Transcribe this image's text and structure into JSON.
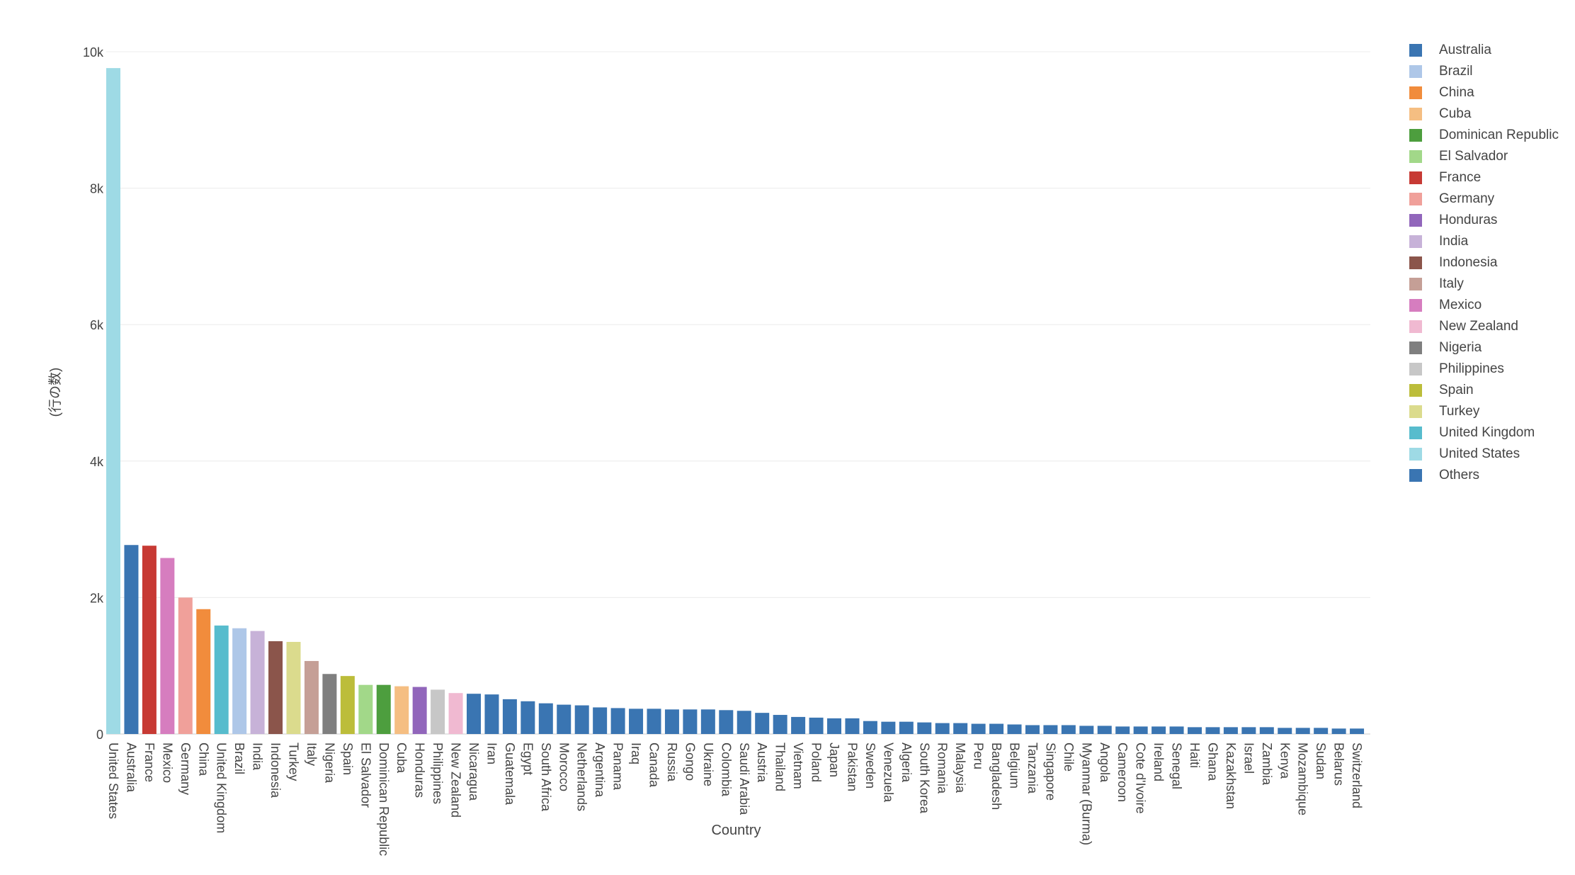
{
  "chart_data": {
    "type": "bar",
    "title": "",
    "xlabel": "Country",
    "ylabel": "(行の数)",
    "ylim": [
      0,
      10000
    ],
    "yticks": [
      {
        "value": 0,
        "label": "0"
      },
      {
        "value": 2000,
        "label": "2k"
      },
      {
        "value": 4000,
        "label": "4k"
      },
      {
        "value": 6000,
        "label": "6k"
      },
      {
        "value": 8000,
        "label": "8k"
      },
      {
        "value": 10000,
        "label": "10k"
      }
    ],
    "grid": true,
    "legend_position": "right",
    "categories": [
      "United States",
      "Australia",
      "France",
      "Mexico",
      "Germany",
      "China",
      "United Kingdom",
      "Brazil",
      "India",
      "Indonesia",
      "Turkey",
      "Italy",
      "Nigeria",
      "Spain",
      "El Salvador",
      "Dominican Republic",
      "Cuba",
      "Honduras",
      "Philippines",
      "New Zealand",
      "Nicaragua",
      "Iran",
      "Guatemala",
      "Egypt",
      "South Africa",
      "Morocco",
      "Netherlands",
      "Argentina",
      "Panama",
      "Iraq",
      "Canada",
      "Russia",
      "Gongo",
      "Ukraine",
      "Colombia",
      "Saudi Arabia",
      "Austria",
      "Thailand",
      "Vietnam",
      "Poland",
      "Japan",
      "Pakistan",
      "Sweden",
      "Venezuela",
      "Algeria",
      "South Korea",
      "Romania",
      "Malaysia",
      "Peru",
      "Bangladesh",
      "Belgium",
      "Tanzania",
      "Singapore",
      "Chile",
      "Myanmar (Burma)",
      "Angola",
      "Cameroon",
      "Cote d'Ivoire",
      "Ireland",
      "Senegal",
      "Haiti",
      "Ghana",
      "Kazakhstan",
      "Israel",
      "Zambia",
      "Kenya",
      "Mozambique",
      "Sudan",
      "Belarus",
      "Switzerland"
    ],
    "values": [
      9760,
      2770,
      2760,
      2580,
      2000,
      1830,
      1590,
      1550,
      1510,
      1360,
      1350,
      1070,
      880,
      850,
      720,
      720,
      700,
      690,
      650,
      600,
      590,
      580,
      510,
      480,
      450,
      430,
      420,
      390,
      380,
      370,
      370,
      360,
      360,
      360,
      350,
      340,
      310,
      280,
      250,
      240,
      230,
      230,
      190,
      180,
      180,
      170,
      160,
      160,
      150,
      150,
      140,
      130,
      130,
      130,
      120,
      120,
      110,
      110,
      110,
      110,
      100,
      100,
      100,
      100,
      100,
      90,
      90,
      90,
      80,
      80
    ],
    "colors": [
      "#9edae5",
      "#3a75b2",
      "#c73a34",
      "#d67dbf",
      "#f0a09a",
      "#f18c3c",
      "#57bccd",
      "#aec7e8",
      "#c7b2d8",
      "#8b554b",
      "#dbdb8d",
      "#c59f96",
      "#7f7f7f",
      "#bcbd3a",
      "#a2d889",
      "#4d9e3e",
      "#f5be82",
      "#9166bb",
      "#c7c7c7",
      "#f0b9d1",
      "#3a75b2",
      "#3a75b2",
      "#3a75b2",
      "#3a75b2",
      "#3a75b2",
      "#3a75b2",
      "#3a75b2",
      "#3a75b2",
      "#3a75b2",
      "#3a75b2",
      "#3a75b2",
      "#3a75b2",
      "#3a75b2",
      "#3a75b2",
      "#3a75b2",
      "#3a75b2",
      "#3a75b2",
      "#3a75b2",
      "#3a75b2",
      "#3a75b2",
      "#3a75b2",
      "#3a75b2",
      "#3a75b2",
      "#3a75b2",
      "#3a75b2",
      "#3a75b2",
      "#3a75b2",
      "#3a75b2",
      "#3a75b2",
      "#3a75b2",
      "#3a75b2",
      "#3a75b2",
      "#3a75b2",
      "#3a75b2",
      "#3a75b2",
      "#3a75b2",
      "#3a75b2",
      "#3a75b2",
      "#3a75b2",
      "#3a75b2",
      "#3a75b2",
      "#3a75b2",
      "#3a75b2",
      "#3a75b2",
      "#3a75b2",
      "#3a75b2",
      "#3a75b2",
      "#3a75b2",
      "#3a75b2",
      "#3a75b2"
    ],
    "legend": [
      {
        "label": "Australia",
        "color": "#3a75b2"
      },
      {
        "label": "Brazil",
        "color": "#aec7e8"
      },
      {
        "label": "China",
        "color": "#f18c3c"
      },
      {
        "label": "Cuba",
        "color": "#f5be82"
      },
      {
        "label": "Dominican Republic",
        "color": "#4d9e3e"
      },
      {
        "label": "El Salvador",
        "color": "#a2d889"
      },
      {
        "label": "France",
        "color": "#c73a34"
      },
      {
        "label": "Germany",
        "color": "#f0a09a"
      },
      {
        "label": "Honduras",
        "color": "#9166bb"
      },
      {
        "label": "India",
        "color": "#c7b2d8"
      },
      {
        "label": "Indonesia",
        "color": "#8b554b"
      },
      {
        "label": "Italy",
        "color": "#c59f96"
      },
      {
        "label": "Mexico",
        "color": "#d67dbf"
      },
      {
        "label": "New Zealand",
        "color": "#f0b9d1"
      },
      {
        "label": "Nigeria",
        "color": "#7f7f7f"
      },
      {
        "label": "Philippines",
        "color": "#c7c7c7"
      },
      {
        "label": "Spain",
        "color": "#bcbd3a"
      },
      {
        "label": "Turkey",
        "color": "#dbdb8d"
      },
      {
        "label": "United Kingdom",
        "color": "#57bccd"
      },
      {
        "label": "United States",
        "color": "#9edae5"
      },
      {
        "label": "Others",
        "color": "#3a75b2"
      }
    ]
  }
}
